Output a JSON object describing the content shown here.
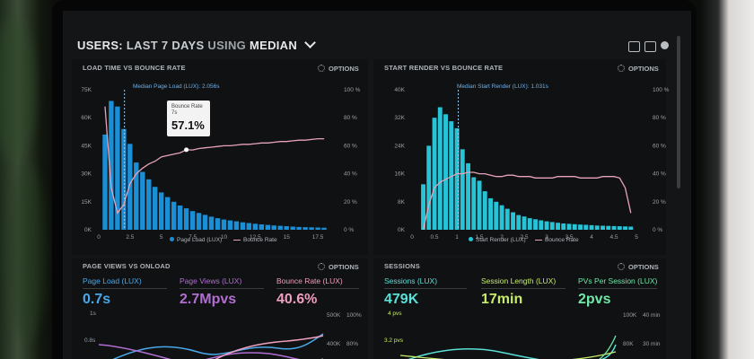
{
  "header": {
    "prefix": "USERS:",
    "period": "LAST 7 DAYS",
    "using": "USING",
    "metric": "MEDIAN",
    "icons": [
      "monitor-icon",
      "share-icon",
      "help-icon"
    ]
  },
  "panels": {
    "load_time": {
      "title": "LOAD TIME VS BOUNCE RATE",
      "options": "OPTIONS",
      "median_label": "Median Page Load (LUX): 2.056s",
      "y_left": [
        "75K",
        "60K",
        "45K",
        "30K",
        "15K",
        "0K"
      ],
      "y_right": [
        "100 %",
        "80 %",
        "60 %",
        "40 %",
        "20 %",
        "0 %"
      ],
      "x_ticks": [
        "0",
        "2.5",
        "5",
        "7.5",
        "10",
        "12.5",
        "15",
        "17.5"
      ],
      "legend": [
        "Page Load (LUX)",
        "Bounce Rate"
      ],
      "tooltip": {
        "series": "Bounce Rate",
        "x": "7s",
        "value": "57.1%"
      }
    },
    "start_render": {
      "title": "START RENDER VS BOUNCE RATE",
      "options": "OPTIONS",
      "median_label": "Median Start Render (LUX): 1.031s",
      "y_left": [
        "40K",
        "32K",
        "24K",
        "16K",
        "8K",
        "0K"
      ],
      "y_right": [
        "100 %",
        "80 %",
        "60 %",
        "40 %",
        "20 %",
        "0 %"
      ],
      "x_ticks": [
        "0",
        "0.5",
        "1",
        "1.5",
        "2",
        "2.5",
        "3",
        "3.5",
        "4",
        "4.5",
        "5"
      ],
      "legend": [
        "Start Render (LUX)",
        "Bounce Rate"
      ]
    },
    "page_views": {
      "title": "PAGE VIEWS VS ONLOAD",
      "options": "OPTIONS",
      "metrics": [
        {
          "label": "Page Load (LUX)",
          "value": "0.7s"
        },
        {
          "label": "Page Views (LUX)",
          "value": "2.7Mpvs"
        },
        {
          "label": "Bounce Rate (LUX)",
          "value": "40.6%"
        }
      ],
      "y_left": [
        "1s",
        "0.8s"
      ],
      "y_right_a": [
        "500K",
        "400K"
      ],
      "y_right_b": [
        "100%",
        "80%"
      ]
    },
    "sessions": {
      "title": "SESSIONS",
      "options": "OPTIONS",
      "metrics": [
        {
          "label": "Sessions (LUX)",
          "value": "479K"
        },
        {
          "label": "Session Length (LUX)",
          "value": "17min"
        },
        {
          "label": "PVs Per Session (LUX)",
          "value": "2pvs"
        }
      ],
      "y_left": [
        "4 pvs",
        "3.2 pvs"
      ],
      "y_right_a": [
        "100K",
        "80K"
      ],
      "y_right_b": [
        "40 min",
        "30 min"
      ]
    }
  },
  "colors": {
    "bar_blue": "#1b8fd6",
    "bar_cyan": "#27c4d8",
    "bounce_pink": "#e7a3b8",
    "pv_purple": "#b06fd0",
    "br_pink": "#ef9fc0",
    "sess_cyan": "#59e0d6",
    "sess_yellow": "#c7ec6a",
    "sess_green": "#6fe8a8",
    "label_blue": "#4aa8e8"
  },
  "chart_data": [
    {
      "type": "bar",
      "title": "LOAD TIME VS BOUNCE RATE",
      "x": [
        0.5,
        1,
        1.5,
        2,
        2.5,
        3,
        3.5,
        4,
        4.5,
        5,
        5.5,
        6,
        6.5,
        7,
        7.5,
        8,
        8.5,
        9,
        9.5,
        10,
        10.5,
        11,
        11.5,
        12,
        12.5,
        13,
        13.5,
        14,
        14.5,
        15,
        15.5,
        16,
        16.5,
        17,
        17.5,
        18
      ],
      "series": [
        {
          "name": "Page Load (LUX)",
          "values": [
            51000,
            69000,
            66000,
            54000,
            46000,
            36000,
            31000,
            27000,
            23000,
            20000,
            17500,
            15000,
            13000,
            11500,
            10000,
            9000,
            8000,
            7000,
            6200,
            5500,
            5000,
            4500,
            4000,
            3600,
            3200,
            2900,
            2600,
            2300,
            2100,
            1900,
            1700,
            1500,
            1400,
            1300,
            1200,
            1100
          ]
        },
        {
          "name": "Bounce Rate",
          "values": [
            88,
            30,
            12,
            18,
            33,
            40,
            44,
            47,
            49,
            52,
            53,
            54,
            55,
            57.1,
            57,
            58,
            58.5,
            59,
            59.5,
            60,
            60,
            60.5,
            61,
            61,
            61.5,
            62,
            62,
            62.5,
            63,
            63,
            63.5,
            64,
            64,
            64.5,
            65,
            65
          ]
        }
      ],
      "ylim": [
        0,
        75000
      ],
      "ylim_right": [
        0,
        100
      ],
      "xlim": [
        0,
        19
      ]
    },
    {
      "type": "bar",
      "title": "START RENDER VS BOUNCE RATE",
      "x": [
        0.25,
        0.375,
        0.5,
        0.625,
        0.75,
        0.875,
        1,
        1.125,
        1.25,
        1.375,
        1.5,
        1.625,
        1.75,
        1.875,
        2,
        2.125,
        2.25,
        2.375,
        2.5,
        2.625,
        2.75,
        2.875,
        3,
        3.125,
        3.25,
        3.375,
        3.5,
        3.625,
        3.75,
        3.875,
        4,
        4.125,
        4.25,
        4.375,
        4.5,
        4.625,
        4.75,
        4.875
      ],
      "series": [
        {
          "name": "Start Render (LUX)",
          "values": [
            13000,
            24000,
            32000,
            35000,
            33000,
            31000,
            29000,
            23000,
            19000,
            15000,
            14000,
            11000,
            9000,
            8000,
            7000,
            6000,
            5000,
            4200,
            3800,
            3300,
            3000,
            2700,
            2400,
            2200,
            2000,
            1800,
            1700,
            1600,
            1500,
            1400,
            1300,
            1200,
            1150,
            1100,
            1050,
            1000,
            950,
            900
          ]
        },
        {
          "name": "Bounce Rate",
          "values": [
            0,
            18,
            30,
            34,
            36,
            38,
            40,
            40,
            41,
            41,
            40,
            40,
            39,
            38,
            38,
            39,
            39,
            38,
            38,
            38,
            37,
            37,
            37,
            37,
            38,
            38,
            38,
            38,
            37,
            37,
            37,
            37,
            38,
            38,
            38,
            37,
            30,
            12
          ]
        }
      ],
      "ylim": [
        0,
        40000
      ],
      "ylim_right": [
        0,
        100
      ],
      "xlim": [
        0,
        5.2
      ]
    }
  ]
}
